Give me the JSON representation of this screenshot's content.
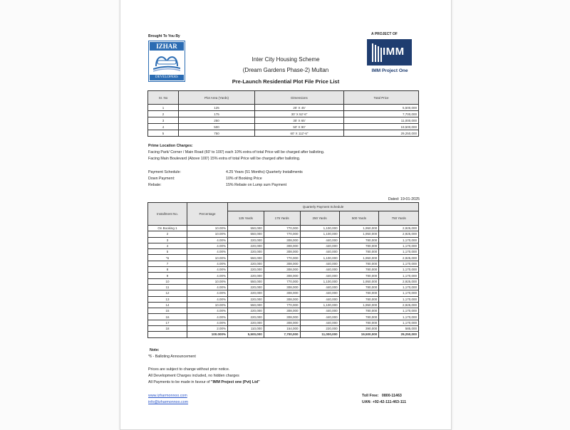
{
  "header": {
    "brought_by": "Brought To You By",
    "developer_logo": {
      "top": "IZHAR",
      "bottom": "DEVELOPERS",
      "color": "#2b6cb3"
    },
    "project_of": "A PROJECT OF",
    "project_logo": {
      "text": "IMM",
      "color": "#1f3d70"
    },
    "project_name": "IMM Project One",
    "title_line1": "Inter City Housing Scheme",
    "title_line2": "(Dream Gardens Phase-2) Multan",
    "subtitle": "Pre-Launch Residential Plot File Price List"
  },
  "price_table": {
    "headers": [
      "Sr. No",
      "Plot Area (Yards)",
      "Dimensions",
      "Total Price"
    ],
    "rows": [
      [
        "1",
        "125",
        "25' X 45'",
        "5,500,000"
      ],
      [
        "2",
        "175",
        "30' X 52'-6\"",
        "7,700,000"
      ],
      [
        "3",
        "250",
        "35' X 65'",
        "11,000,000"
      ],
      [
        "4",
        "500",
        "50' X 90'",
        "19,500,000"
      ],
      [
        "5",
        "750",
        "60' X 112'-6\"",
        "29,250,000"
      ]
    ]
  },
  "prime": {
    "heading": "Prime Location Charges:",
    "line1": "Facing Park/ Corner / Main Road (60' to 100') each 10% extra of total Price will be charged after balloting.",
    "line2": "Facing Main Boulevard (Above 100') 15% extra of total Price will be charged after balloting."
  },
  "terms": [
    {
      "label": "Payment Schedule:",
      "value": "4.25 Years (51 Months) Quarterly Installments"
    },
    {
      "label": "Down Payment:",
      "value": "10% of Booking Price"
    },
    {
      "label": "Rebate:",
      "value": "15% Rebate on Lump sum Payment"
    }
  ],
  "dated": "Dated: 19-01-2025",
  "schedule": {
    "col_installment": "Installment No.",
    "col_percentage": "Percentage",
    "group_header": "Quarterly Payment Schedule",
    "sizes": [
      "125 Yards",
      "175 Yards",
      "250 Yards",
      "500 Yards",
      "750 Yards"
    ],
    "rows": [
      [
        "On Booking 1",
        "10.00%",
        "550,000",
        "770,000",
        "1,100,000",
        "1,950,000",
        "2,925,000"
      ],
      [
        "2",
        "10.00%",
        "550,000",
        "770,000",
        "1,100,000",
        "1,950,000",
        "2,925,000"
      ],
      [
        "3",
        "4.00%",
        "220,000",
        "308,000",
        "440,000",
        "780,000",
        "1,170,000"
      ],
      [
        "4",
        "4.00%",
        "220,000",
        "308,000",
        "440,000",
        "780,000",
        "1,170,000"
      ],
      [
        "5",
        "4.00%",
        "220,000",
        "308,000",
        "440,000",
        "780,000",
        "1,170,000"
      ],
      [
        "*6",
        "10.00%",
        "550,000",
        "770,000",
        "1,100,000",
        "1,950,000",
        "2,925,000"
      ],
      [
        "7",
        "4.00%",
        "220,000",
        "308,000",
        "440,000",
        "780,000",
        "1,170,000"
      ],
      [
        "8",
        "4.00%",
        "220,000",
        "308,000",
        "440,000",
        "780,000",
        "1,170,000"
      ],
      [
        "9",
        "4.00%",
        "220,000",
        "308,000",
        "440,000",
        "780,000",
        "1,170,000"
      ],
      [
        "10",
        "10.00%",
        "550,000",
        "770,000",
        "1,100,000",
        "1,950,000",
        "2,925,000"
      ],
      [
        "11",
        "4.00%",
        "220,000",
        "308,000",
        "440,000",
        "780,000",
        "1,170,000"
      ],
      [
        "12",
        "4.00%",
        "220,000",
        "308,000",
        "440,000",
        "780,000",
        "1,170,000"
      ],
      [
        "13",
        "4.00%",
        "220,000",
        "308,000",
        "440,000",
        "780,000",
        "1,170,000"
      ],
      [
        "14",
        "10.00%",
        "550,000",
        "770,000",
        "1,100,000",
        "1,950,000",
        "2,925,000"
      ],
      [
        "15",
        "4.00%",
        "220,000",
        "308,000",
        "440,000",
        "780,000",
        "1,170,000"
      ],
      [
        "16",
        "4.00%",
        "220,000",
        "308,000",
        "440,000",
        "780,000",
        "1,170,000"
      ],
      [
        "17",
        "4.00%",
        "220,000",
        "308,000",
        "440,000",
        "780,000",
        "1,170,000"
      ],
      [
        "18",
        "2.00%",
        "110,000",
        "154,000",
        "220,000",
        "390,000",
        "585,000"
      ]
    ],
    "total": [
      "",
      "100.000%",
      "5,500,000",
      "7,700,000",
      "11,000,000",
      "19,500,000",
      "29,250,000"
    ]
  },
  "notes": {
    "heading": "Note:",
    "balloting": "*6 - Balloting Announcement",
    "lines": [
      "Prices are subject to change without prior notice.",
      "All Development Charges included, no hidden charges"
    ],
    "payment_prefix": "All Payments to be made in favour of ",
    "payment_payee": "\"IMM Project one (Pvt) Ltd\""
  },
  "footer": {
    "website": "www.izharmonnoo.com",
    "email": "info@izharmonnoo.com",
    "toll_free_label": "Toll Free:",
    "toll_free": "0800-11463",
    "uan_label": "UAN:",
    "uan": "+92-42-111-463-111"
  }
}
